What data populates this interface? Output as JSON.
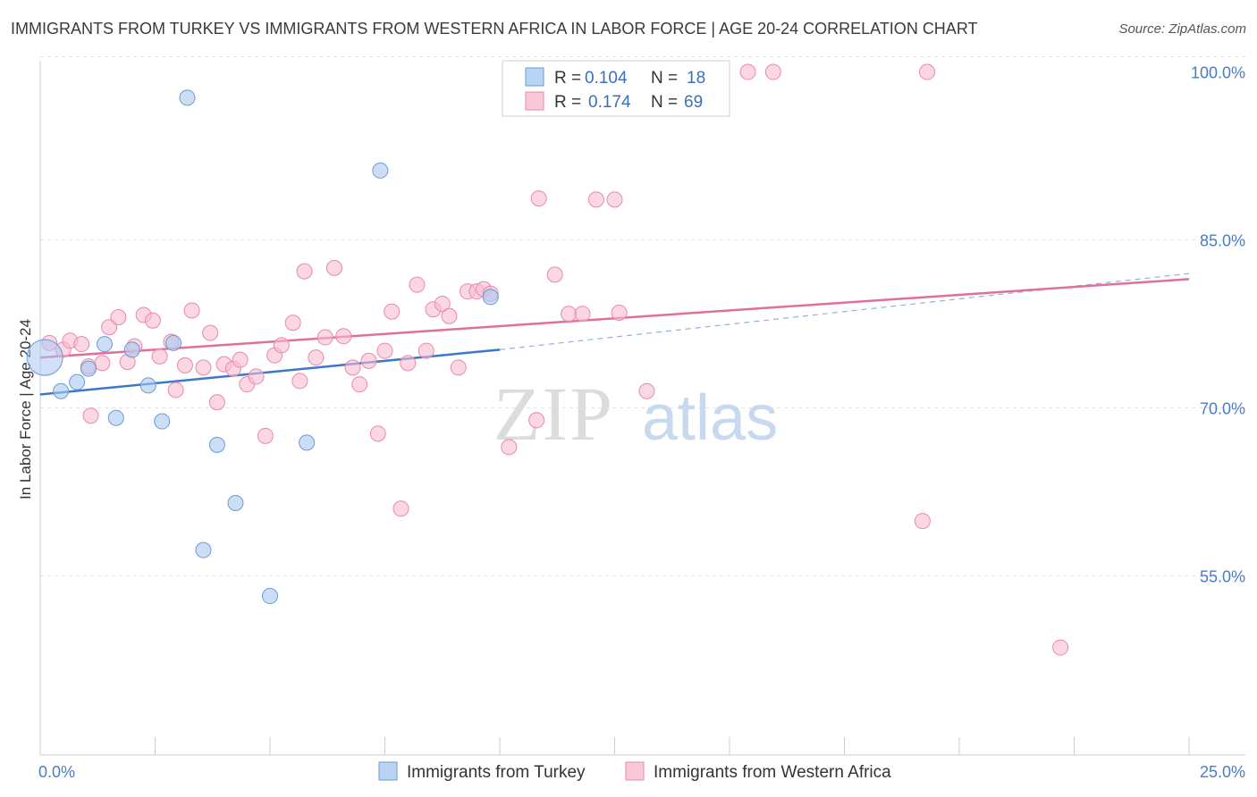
{
  "title": "IMMIGRANTS FROM TURKEY VS IMMIGRANTS FROM WESTERN AFRICA IN LABOR FORCE | AGE 20-24 CORRELATION CHART",
  "source": "Source: ZipAtlas.com",
  "watermark": {
    "zip": "ZIP",
    "atlas": "atlas"
  },
  "chart_data": {
    "type": "scatter",
    "ylabel": "In Labor Force | Age 20-24",
    "xlim": [
      0,
      25
    ],
    "ylim": [
      39,
      101
    ],
    "x_tick_labels": [
      "0.0%",
      "25.0%"
    ],
    "y_ticks": [
      {
        "value": 100,
        "label": "100.0%"
      },
      {
        "value": 85,
        "label": "85.0%"
      },
      {
        "value": 70,
        "label": "70.0%"
      },
      {
        "value": 55,
        "label": "55.0%"
      }
    ],
    "legend": {
      "rows": [
        {
          "r_label": "R =",
          "r_value": "0.104",
          "n_label": "N =",
          "n_value": "18"
        },
        {
          "r_label": "R =",
          "r_value": "0.174",
          "n_label": "N =",
          "n_value": "69"
        }
      ]
    },
    "series": [
      {
        "name": "Immigrants from Turkey",
        "color": "#a9c8f0",
        "stroke": "#6a9ad8",
        "line_color": "#3a78cc",
        "trend": {
          "x0": 0,
          "y0": 71.2,
          "x1": 10,
          "y1": 75.2,
          "dash_to_x": 25,
          "dash_to_y": 82.0
        },
        "points": [
          [
            0.1,
            74.5
          ],
          [
            0.45,
            71.5
          ],
          [
            0.8,
            72.3
          ],
          [
            1.05,
            73.5
          ],
          [
            1.4,
            75.7
          ],
          [
            1.65,
            69.1
          ],
          [
            2.0,
            75.2
          ],
          [
            2.35,
            72.0
          ],
          [
            2.65,
            68.8
          ],
          [
            2.9,
            75.8
          ],
          [
            3.2,
            97.7
          ],
          [
            3.55,
            57.3
          ],
          [
            3.85,
            66.7
          ],
          [
            4.25,
            61.5
          ],
          [
            5.0,
            53.2
          ],
          [
            5.8,
            66.9
          ],
          [
            7.4,
            91.2
          ],
          [
            9.8,
            79.9
          ]
        ]
      },
      {
        "name": "Immigrants from Western Africa",
        "color": "#f6bdd0",
        "stroke": "#e88aaa",
        "line_color": "#e0709a",
        "trend": {
          "x0": 0,
          "y0": 74.5,
          "x1": 25,
          "y1": 81.5
        },
        "points": [
          [
            0.2,
            75.8
          ],
          [
            0.5,
            75.2
          ],
          [
            0.65,
            76.0
          ],
          [
            0.9,
            75.7
          ],
          [
            1.05,
            73.7
          ],
          [
            1.1,
            69.3
          ],
          [
            1.35,
            74.0
          ],
          [
            1.5,
            77.2
          ],
          [
            1.7,
            78.1
          ],
          [
            1.9,
            74.1
          ],
          [
            2.05,
            75.5
          ],
          [
            2.25,
            78.3
          ],
          [
            2.45,
            77.8
          ],
          [
            2.6,
            74.6
          ],
          [
            2.85,
            75.9
          ],
          [
            2.95,
            71.6
          ],
          [
            3.15,
            73.8
          ],
          [
            3.3,
            78.7
          ],
          [
            3.55,
            73.6
          ],
          [
            3.7,
            76.7
          ],
          [
            3.85,
            70.5
          ],
          [
            4.0,
            73.9
          ],
          [
            4.2,
            73.5
          ],
          [
            4.35,
            74.3
          ],
          [
            4.5,
            72.1
          ],
          [
            4.7,
            72.8
          ],
          [
            4.9,
            67.5
          ],
          [
            5.1,
            74.7
          ],
          [
            5.25,
            75.6
          ],
          [
            5.5,
            77.6
          ],
          [
            5.65,
            72.4
          ],
          [
            5.75,
            82.2
          ],
          [
            6.0,
            74.5
          ],
          [
            6.2,
            76.3
          ],
          [
            6.4,
            82.5
          ],
          [
            6.6,
            76.4
          ],
          [
            6.8,
            73.6
          ],
          [
            6.95,
            72.1
          ],
          [
            7.15,
            74.2
          ],
          [
            7.35,
            67.7
          ],
          [
            7.5,
            75.1
          ],
          [
            7.65,
            78.6
          ],
          [
            7.85,
            61.0
          ],
          [
            8.0,
            74.0
          ],
          [
            8.2,
            81.0
          ],
          [
            8.4,
            75.1
          ],
          [
            8.55,
            78.8
          ],
          [
            8.75,
            79.3
          ],
          [
            8.9,
            78.2
          ],
          [
            9.1,
            73.6
          ],
          [
            9.3,
            80.4
          ],
          [
            9.5,
            80.4
          ],
          [
            9.65,
            80.6
          ],
          [
            9.8,
            80.2
          ],
          [
            10.2,
            66.5
          ],
          [
            10.8,
            68.9
          ],
          [
            10.85,
            88.7
          ],
          [
            11.2,
            81.9
          ],
          [
            11.5,
            78.4
          ],
          [
            11.8,
            78.4
          ],
          [
            12.1,
            88.6
          ],
          [
            12.5,
            88.6
          ],
          [
            12.6,
            78.5
          ],
          [
            13.2,
            71.5
          ],
          [
            15.4,
            100.0
          ],
          [
            15.95,
            100.0
          ],
          [
            19.3,
            100.0
          ],
          [
            19.2,
            59.9
          ],
          [
            22.2,
            48.6
          ]
        ]
      }
    ]
  }
}
